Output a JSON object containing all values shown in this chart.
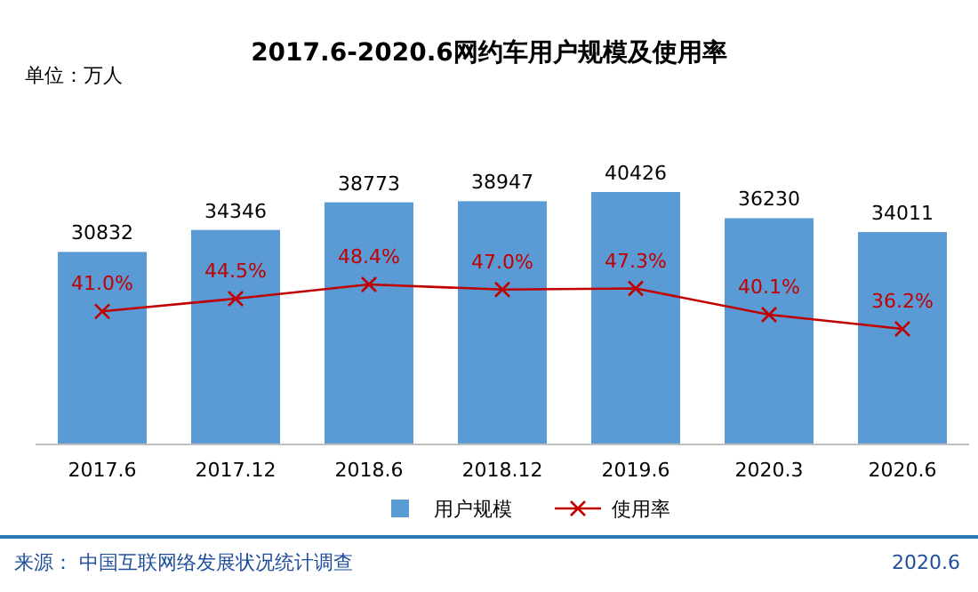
{
  "chart_data": {
    "type": "bar",
    "title": "2017.6-2020.6网约车用户规模及使用率",
    "categories": [
      "2017.6",
      "2017.12",
      "2018.6",
      "2018.12",
      "2019.6",
      "2020.3",
      "2020.6"
    ],
    "series": [
      {
        "name": "用户规模",
        "color": "#5b9bd5",
        "values": [
          30832,
          34346,
          38773,
          38947,
          40426,
          36230,
          34011
        ],
        "value_labels": [
          "30832",
          "34346",
          "38773",
          "38947",
          "40426",
          "36230",
          "34011"
        ]
      },
      {
        "name": "使用率",
        "type": "line",
        "axis": "y2",
        "color": "#c00000",
        "marker": "cross",
        "values": [
          41.0,
          44.5,
          48.4,
          47.0,
          47.3,
          40.1,
          36.2
        ],
        "value_labels": [
          "41.0%",
          "44.5%",
          "48.4%",
          "47.0%",
          "47.3%",
          "40.1%",
          "36.2%"
        ]
      }
    ],
    "legend": "bottom",
    "annotations": [
      "单位：万人",
      "来源： 中国互联网络发展状况统计调查",
      "2020.6"
    ]
  }
}
